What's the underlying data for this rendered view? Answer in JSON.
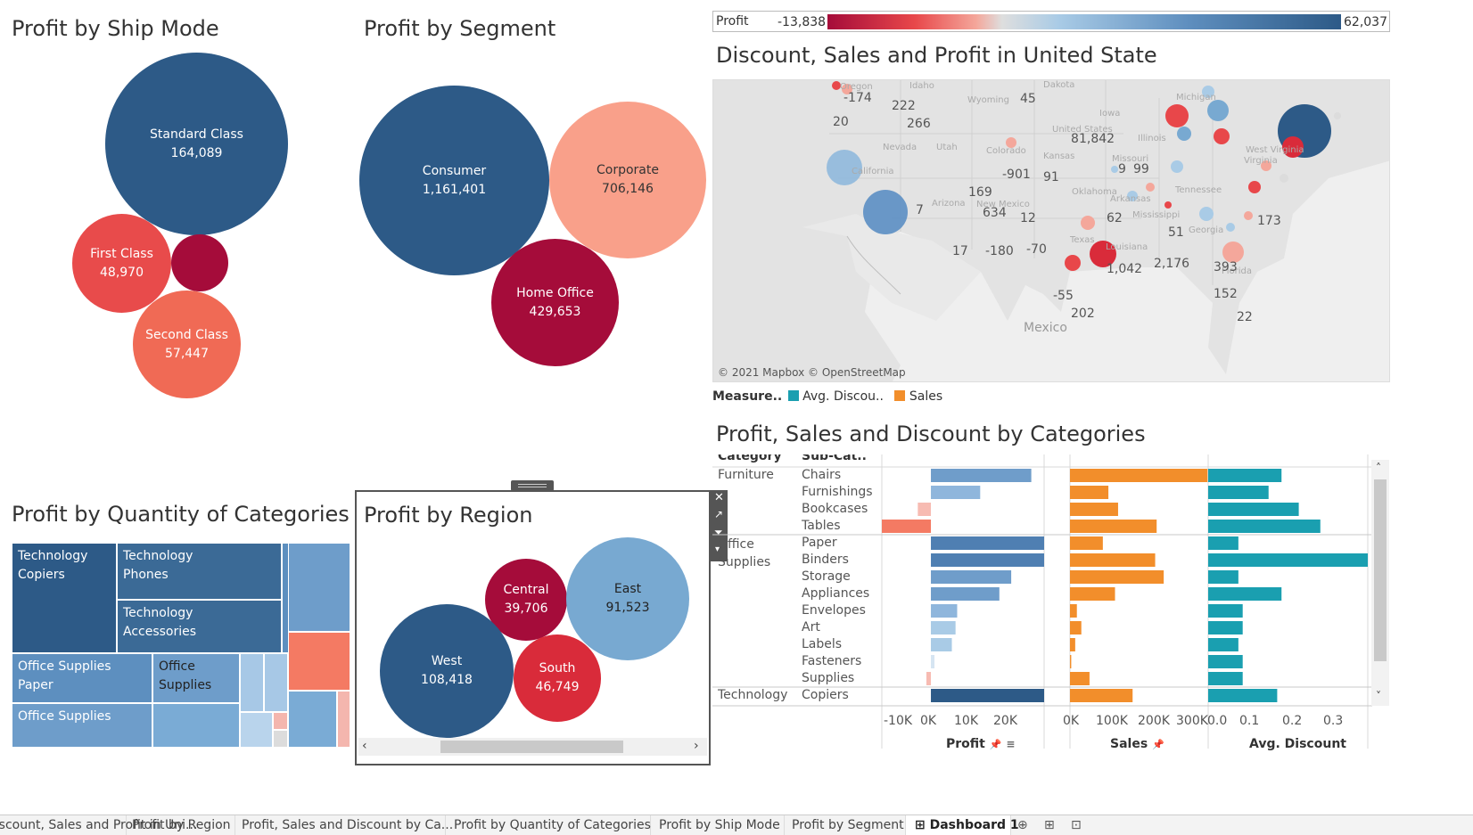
{
  "ship_mode": {
    "title": "Profit by Ship Mode",
    "bubbles": [
      {
        "name": "Standard Class",
        "value": "164,089",
        "color": "#2d5a87"
      },
      {
        "name": "First Class",
        "value": "48,970",
        "color": "#e84b4b"
      },
      {
        "name": "",
        "value": "",
        "color": "#a50c3a"
      },
      {
        "name": "Second Class",
        "value": "57,447",
        "color": "#f06a55"
      }
    ]
  },
  "segment": {
    "title": "Profit by Segment",
    "bubbles": [
      {
        "name": "Consumer",
        "value": "1,161,401",
        "color": "#2d5a87"
      },
      {
        "name": "Corporate",
        "value": "706,146",
        "color": "#f9a08a"
      },
      {
        "name": "Home Office",
        "value": "429,653",
        "color": "#a50c3a"
      }
    ]
  },
  "quantity": {
    "title": "Profit by Quantity of Categories",
    "cells": [
      {
        "line1": "Technology",
        "line2": "Copiers",
        "color": "#2d5a87"
      },
      {
        "line1": "Technology",
        "line2": "Phones",
        "color": "#3b6a96"
      },
      {
        "line1": "Technology",
        "line2": "Accessories",
        "color": "#3b6a96"
      },
      {
        "line1": "Office Supplies",
        "line2": "Paper",
        "color": "#5d8fbf"
      },
      {
        "line1": "Office",
        "line2": "Supplies",
        "color": "#6e9dca"
      },
      {
        "line1": "Office Supplies",
        "line2": "",
        "color": "#6e9dca"
      }
    ]
  },
  "region": {
    "title": "Profit by Region",
    "bubbles": [
      {
        "name": "Central",
        "value": "39,706",
        "color": "#a50c3a"
      },
      {
        "name": "East",
        "value": "91,523",
        "color": "#78a9d1"
      },
      {
        "name": "West",
        "value": "108,418",
        "color": "#2d5a87"
      },
      {
        "name": "South",
        "value": "46,749",
        "color": "#d92b3a"
      }
    ]
  },
  "map": {
    "legend_label": "Profit",
    "legend_min": "-13,838",
    "legend_max": "62,037",
    "title": "Discount, Sales and Profit in United State",
    "attribution": "© 2021 Mapbox © OpenStreetMap",
    "country_label": "Mexico",
    "state_labels": [
      "Idaho",
      "Wyoming",
      "Dakota",
      "Nevada",
      "Utah",
      "Colorado",
      "Iowa",
      "Kansas",
      "Arizona",
      "New Mexico",
      "Oklahoma",
      "Arkansas",
      "Mississippi",
      "Texas",
      "Louisiana",
      "Georgia",
      "Florida",
      "Virginia",
      "Illinois",
      "Missouri",
      "Tennessee",
      "Michigan",
      "West Virginia",
      "California",
      "Oregon",
      "United States"
    ],
    "values": [
      "-174",
      "222",
      "45",
      "20",
      "266",
      "8",
      "1,842",
      "-901",
      "91",
      "9",
      "99",
      "169",
      "634",
      "12",
      "7",
      "62",
      "173",
      "51",
      "17",
      "-180",
      "-70",
      "1,042",
      "2,176",
      "393",
      "-55",
      "152",
      "202",
      "22"
    ]
  },
  "categories": {
    "title": "Profit, Sales and Discount by Categories",
    "measure_label": "Measure..",
    "legend": [
      {
        "name": "Avg. Discou..",
        "color": "#1a9fb0"
      },
      {
        "name": "Sales",
        "color": "#f28e2b"
      }
    ],
    "col_headers": [
      "Category",
      "Sub-Cat.."
    ],
    "groups": [
      {
        "category": "Furniture",
        "subs": [
          "Chairs",
          "Furnishings",
          "Bookcases",
          "Tables"
        ]
      },
      {
        "category": "Office Supplies",
        "subs": [
          "Paper",
          "Binders",
          "Storage",
          "Appliances",
          "Envelopes",
          "Art",
          "Labels",
          "Fasteners",
          "Supplies"
        ]
      },
      {
        "category": "Technology",
        "subs": [
          "Copiers"
        ]
      }
    ],
    "axes": {
      "profit": {
        "label": "Profit",
        "ticks": [
          "-10K",
          "0K",
          "10K",
          "20K"
        ]
      },
      "sales": {
        "label": "Sales",
        "ticks": [
          "0K",
          "100K",
          "200K",
          "300K"
        ]
      },
      "discount": {
        "label": "Avg. Discount",
        "ticks": [
          "0.0",
          "0.1",
          "0.2",
          "0.3"
        ]
      }
    }
  },
  "chart_data": {
    "type": "bar",
    "categories": [
      "Chairs",
      "Furnishings",
      "Bookcases",
      "Tables",
      "Paper",
      "Binders",
      "Storage",
      "Appliances",
      "Envelopes",
      "Art",
      "Labels",
      "Fasteners",
      "Supplies",
      "Copiers"
    ],
    "series": [
      {
        "name": "Profit",
        "values": [
          26600,
          13060,
          -3470,
          -17730,
          34050,
          30220,
          21280,
          18140,
          6960,
          6530,
          5550,
          950,
          -1190,
          55620
        ]
      },
      {
        "name": "Sales",
        "values": [
          328450,
          91710,
          114880,
          206970,
          78480,
          203410,
          223840,
          107530,
          16480,
          27120,
          12490,
          3020,
          46670,
          149530
        ]
      },
      {
        "name": "Avg. Discount",
        "values": [
          0.17,
          0.14,
          0.21,
          0.26,
          0.07,
          0.37,
          0.07,
          0.17,
          0.08,
          0.08,
          0.07,
          0.08,
          0.08,
          0.16
        ]
      }
    ],
    "xlim": {
      "profit": [
        -13000,
        30000
      ],
      "sales": [
        0,
        330000
      ],
      "discount": [
        0,
        0.37
      ]
    }
  },
  "tabs": [
    "Discount, Sales and Profit in Uni...",
    "Profit by Region",
    "Profit, Sales and Discount by Ca...",
    "Profit by Quantity of Categories",
    "Profit by Ship Mode",
    "Profit by Segment",
    "Dashboard 1"
  ]
}
